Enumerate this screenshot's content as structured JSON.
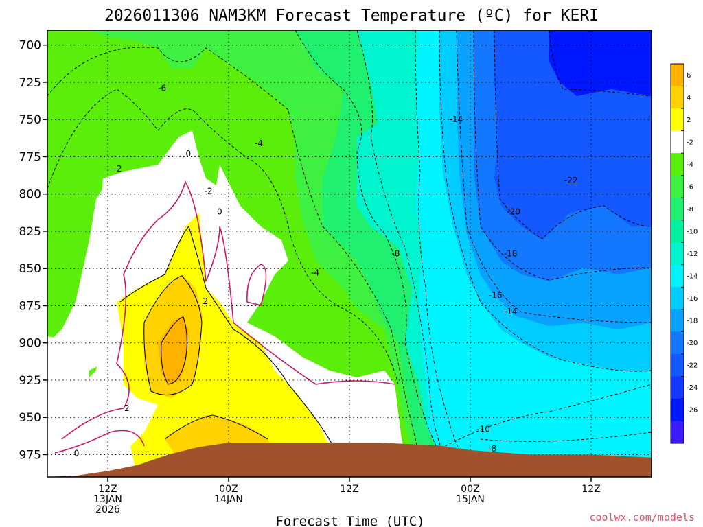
{
  "chart_data": {
    "type": "heatmap",
    "title": "2026011306 NAM3KM Forecast Temperature (ºC) for KERI",
    "xlabel": "Forecast Time (UTC)",
    "ylabel": "",
    "y_axis": {
      "scale": "pressure",
      "inverted": true,
      "ylim": [
        990,
        690
      ],
      "ticks": [
        700,
        725,
        750,
        775,
        800,
        825,
        850,
        875,
        900,
        925,
        950,
        975
      ]
    },
    "x_axis": {
      "xlim_hours": [
        0,
        60
      ],
      "ticks": [
        {
          "hour": 6,
          "lines": [
            "12Z",
            "13JAN",
            "2026"
          ]
        },
        {
          "hour": 18,
          "lines": [
            "00Z",
            "14JAN"
          ]
        },
        {
          "hour": 30,
          "lines": [
            "12Z"
          ]
        },
        {
          "hour": 42,
          "lines": [
            "00Z",
            "15JAN"
          ]
        },
        {
          "hour": 54,
          "lines": [
            "12Z"
          ]
        }
      ]
    },
    "grid": true,
    "colorbar": {
      "placement": "right",
      "ticks": [
        6,
        4,
        2,
        -2,
        -4,
        -6,
        -8,
        -10,
        -12,
        -14,
        -16,
        -18,
        -20,
        -22,
        -24,
        -26
      ],
      "bands": [
        {
          "max": 8,
          "min": 6,
          "color": "#ffb300"
        },
        {
          "max": 6,
          "min": 4,
          "color": "#ffd200"
        },
        {
          "max": 4,
          "min": 2,
          "color": "#ffff00"
        },
        {
          "max": 2,
          "min": -2,
          "color": "#ffffff"
        },
        {
          "max": -2,
          "min": -4,
          "color": "#5aee0a"
        },
        {
          "max": -4,
          "min": -6,
          "color": "#3ef040"
        },
        {
          "max": -6,
          "min": -8,
          "color": "#20f070"
        },
        {
          "max": -8,
          "min": -10,
          "color": "#00f2a0"
        },
        {
          "max": -10,
          "min": -12,
          "color": "#00f4cf"
        },
        {
          "max": -12,
          "min": -14,
          "color": "#00f4ff"
        },
        {
          "max": -14,
          "min": -16,
          "color": "#00ccff"
        },
        {
          "max": -16,
          "min": -18,
          "color": "#0aa2ff"
        },
        {
          "max": -18,
          "min": -20,
          "color": "#1478ff"
        },
        {
          "max": -20,
          "min": -22,
          "color": "#1458ff"
        },
        {
          "max": -22,
          "min": -24,
          "color": "#1438ff"
        },
        {
          "max": -24,
          "min": -26,
          "color": "#0018ff"
        },
        {
          "max": -26,
          "min": -28,
          "color": "#3a1cff"
        }
      ]
    },
    "contour_labels": [
      {
        "text": "-6",
        "hour": 11.4,
        "p": 729
      },
      {
        "text": "-2",
        "hour": 7.0,
        "p": 783
      },
      {
        "text": "0",
        "hour": 14.0,
        "p": 773
      },
      {
        "text": "-4",
        "hour": 21.0,
        "p": 766
      },
      {
        "text": "-2",
        "hour": 16.0,
        "p": 798
      },
      {
        "text": "0",
        "hour": 17.1,
        "p": 812
      },
      {
        "text": "-14",
        "hour": 40.6,
        "p": 750
      },
      {
        "text": "-22",
        "hour": 52.0,
        "p": 791
      },
      {
        "text": "-20",
        "hour": 46.3,
        "p": 812
      },
      {
        "text": "-8",
        "hour": 34.6,
        "p": 840
      },
      {
        "text": "-18",
        "hour": 46.0,
        "p": 840
      },
      {
        "text": "-4",
        "hour": 26.6,
        "p": 853
      },
      {
        "text": "2",
        "hour": 15.7,
        "p": 872
      },
      {
        "text": "-16",
        "hour": 44.5,
        "p": 868
      },
      {
        "text": "-14",
        "hour": 46.0,
        "p": 879
      },
      {
        "text": "2",
        "hour": 7.9,
        "p": 944
      },
      {
        "text": "-10",
        "hour": 43.3,
        "p": 958
      },
      {
        "text": "0",
        "hour": 2.9,
        "p": 974
      },
      {
        "text": "-8",
        "hour": 44.2,
        "p": 971
      }
    ],
    "surface": {
      "color": "#a0522d",
      "profile": [
        [
          0,
          990
        ],
        [
          3,
          989
        ],
        [
          6,
          986
        ],
        [
          9,
          982
        ],
        [
          12,
          975
        ],
        [
          15,
          970
        ],
        [
          18,
          967
        ],
        [
          27,
          967
        ],
        [
          33,
          967
        ],
        [
          39,
          969
        ],
        [
          42,
          972
        ],
        [
          48,
          975
        ],
        [
          54,
          975
        ],
        [
          60,
          977
        ],
        [
          60,
          990
        ]
      ]
    }
  },
  "credit": "coolwx.com/models"
}
